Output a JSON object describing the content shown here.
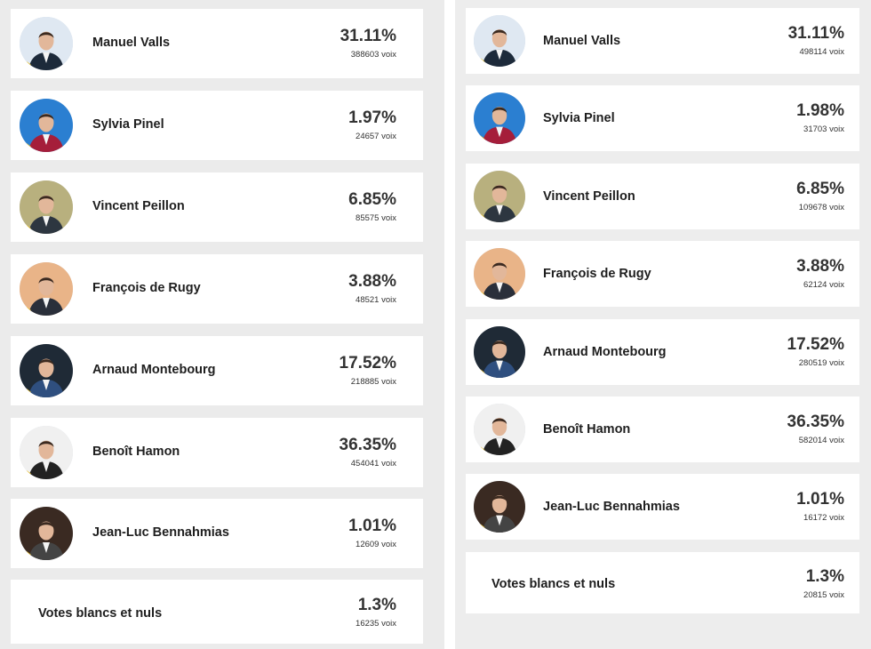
{
  "left": {
    "candidates": [
      {
        "name": "Manuel Valls",
        "percent": "31.11%",
        "votes": "388603 voix",
        "photo": "portrait-icon",
        "bg": "#dfe8f2",
        "suit": "#1d2a3a"
      },
      {
        "name": "Sylvia Pinel",
        "percent": "1.97%",
        "votes": "24657 voix",
        "photo": "portrait-icon",
        "bg": "#2b7fd1",
        "suit": "#a51e3a"
      },
      {
        "name": "Vincent Peillon",
        "percent": "6.85%",
        "votes": "85575 voix",
        "photo": "portrait-icon",
        "bg": "#b8b07e",
        "suit": "#2d3640"
      },
      {
        "name": "François de Rugy",
        "percent": "3.88%",
        "votes": "48521 voix",
        "photo": "portrait-icon",
        "bg": "#e9b488",
        "suit": "#2a2f3a"
      },
      {
        "name": "Arnaud Montebourg",
        "percent": "17.52%",
        "votes": "218885 voix",
        "photo": "portrait-icon",
        "bg": "#1f2a36",
        "suit": "#2f4f7f"
      },
      {
        "name": "Benoît Hamon",
        "percent": "36.35%",
        "votes": "454041 voix",
        "photo": "portrait-icon",
        "bg": "#f0f0f0",
        "suit": "#222222"
      },
      {
        "name": "Jean-Luc Bennahmias",
        "percent": "1.01%",
        "votes": "12609 voix",
        "photo": "portrait-icon",
        "bg": "#3a2a22",
        "suit": "#444444"
      }
    ],
    "blank": {
      "label": "Votes blancs et nuls",
      "percent": "1.3%",
      "votes": "16235 voix"
    }
  },
  "right": {
    "candidates": [
      {
        "name": "Manuel Valls",
        "percent": "31.11%",
        "votes": "498114 voix",
        "photo": "portrait-icon",
        "bg": "#dfe8f2",
        "suit": "#1d2a3a"
      },
      {
        "name": "Sylvia Pinel",
        "percent": "1.98%",
        "votes": "31703 voix",
        "photo": "portrait-icon",
        "bg": "#2b7fd1",
        "suit": "#a51e3a"
      },
      {
        "name": "Vincent Peillon",
        "percent": "6.85%",
        "votes": "109678 voix",
        "photo": "portrait-icon",
        "bg": "#b8b07e",
        "suit": "#2d3640"
      },
      {
        "name": "François de Rugy",
        "percent": "3.88%",
        "votes": "62124 voix",
        "photo": "portrait-icon",
        "bg": "#e9b488",
        "suit": "#2a2f3a"
      },
      {
        "name": "Arnaud Montebourg",
        "percent": "17.52%",
        "votes": "280519 voix",
        "photo": "portrait-icon",
        "bg": "#1f2a36",
        "suit": "#2f4f7f"
      },
      {
        "name": "Benoît Hamon",
        "percent": "36.35%",
        "votes": "582014 voix",
        "photo": "portrait-icon",
        "bg": "#f0f0f0",
        "suit": "#222222"
      },
      {
        "name": "Jean-Luc Bennahmias",
        "percent": "1.01%",
        "votes": "16172 voix",
        "photo": "portrait-icon",
        "bg": "#3a2a22",
        "suit": "#444444"
      }
    ],
    "blank": {
      "label": "Votes blancs et nuls",
      "percent": "1.3%",
      "votes": "20815 voix"
    }
  }
}
